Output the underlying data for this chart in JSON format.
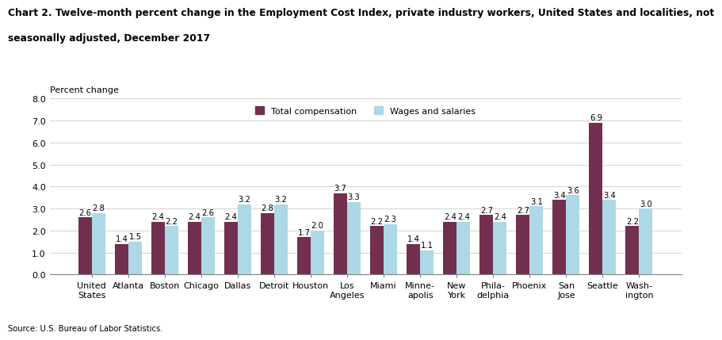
{
  "categories": [
    "United\nStates",
    "Atlanta",
    "Boston",
    "Chicago",
    "Dallas",
    "Detroit",
    "Houston",
    "Los\nAngeles",
    "Miami",
    "Minne-\napolis",
    "New\nYork",
    "Phila-\ndelphia",
    "Phoenix",
    "San\nJose",
    "Seattle",
    "Wash-\nington"
  ],
  "total_compensation": [
    2.6,
    1.4,
    2.4,
    2.4,
    2.4,
    2.8,
    1.7,
    3.7,
    2.2,
    1.4,
    2.4,
    2.7,
    2.7,
    3.4,
    6.9,
    2.2
  ],
  "wages_salaries": [
    2.8,
    1.5,
    2.2,
    2.6,
    3.2,
    3.2,
    2.0,
    3.3,
    2.3,
    1.1,
    2.4,
    2.4,
    3.1,
    3.6,
    3.4,
    3.0
  ],
  "color_total": "#722F4F",
  "color_wages": "#ADD8E6",
  "title_line1": "Chart 2. Twelve-month percent change in the Employment Cost Index, private industry workers, United States and localities, not",
  "title_line2": "seasonally adjusted, December 2017",
  "ylabel": "Percent change",
  "ylim": [
    0.0,
    8.0
  ],
  "yticks": [
    0.0,
    1.0,
    2.0,
    3.0,
    4.0,
    5.0,
    6.0,
    7.0,
    8.0
  ],
  "legend_total": "Total compensation",
  "legend_wages": "Wages and salaries",
  "source": "Source: U.S. Bureau of Labor Statistics.",
  "bar_width": 0.37,
  "label_fontsize": 7.2,
  "tick_fontsize": 8.0,
  "title_fontsize": 8.8,
  "axis_title_fontsize": 8.0
}
